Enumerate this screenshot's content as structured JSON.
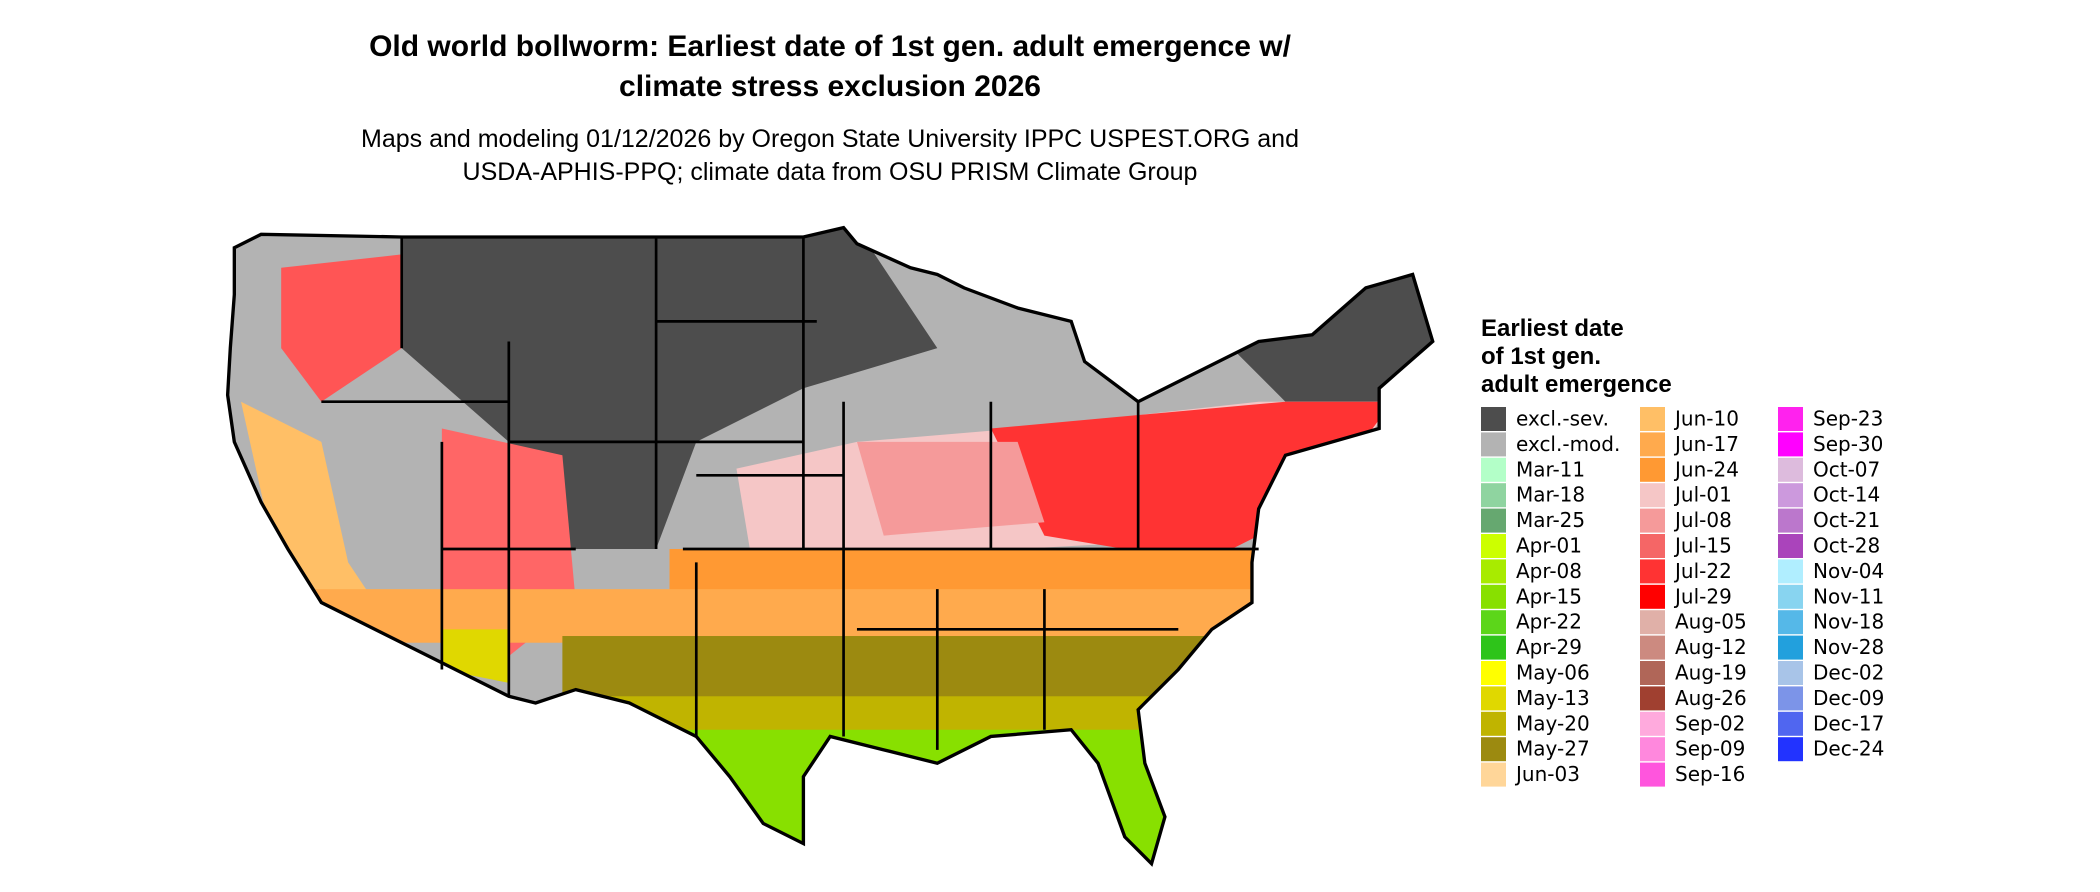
{
  "header": {
    "title_lines": [
      "Old world bollworm: Earliest date of 1st gen. adult emergence w/",
      "climate stress exclusion 2026"
    ],
    "subtitle_lines": [
      "Maps and modeling 01/12/2026 by Oregon State University IPPC USPEST.ORG and",
      "USDA-APHIS-PPQ; climate data from OSU PRISM Climate Group"
    ]
  },
  "legend": {
    "title_lines": [
      "Earliest date",
      "of 1st gen.",
      "adult emergence"
    ],
    "items": [
      {
        "label": "excl.-sev.",
        "color": "#4d4d4d"
      },
      {
        "label": "excl.-mod.",
        "color": "#b3b3b3"
      },
      {
        "label": "Mar-11",
        "color": "#b3ffc8"
      },
      {
        "label": "Mar-18",
        "color": "#8fd4a0"
      },
      {
        "label": "Mar-25",
        "color": "#66a870"
      },
      {
        "label": "Apr-01",
        "color": "#ccff00"
      },
      {
        "label": "Apr-08",
        "color": "#a8eb00"
      },
      {
        "label": "Apr-15",
        "color": "#88e000"
      },
      {
        "label": "Apr-22",
        "color": "#5cd61a"
      },
      {
        "label": "Apr-29",
        "color": "#2ec41a"
      },
      {
        "label": "May-06",
        "color": "#ffff00"
      },
      {
        "label": "May-13",
        "color": "#e0d800"
      },
      {
        "label": "May-20",
        "color": "#c0b400"
      },
      {
        "label": "May-27",
        "color": "#9c8a10"
      },
      {
        "label": "Jun-03",
        "color": "#ffd699"
      },
      {
        "label": "Jun-10",
        "color": "#ffbf66"
      },
      {
        "label": "Jun-17",
        "color": "#ffaa4d"
      },
      {
        "label": "Jun-24",
        "color": "#ff9933"
      },
      {
        "label": "Jul-01",
        "color": "#f5c6c6"
      },
      {
        "label": "Jul-08",
        "color": "#f59a9a"
      },
      {
        "label": "Jul-15",
        "color": "#f56666"
      },
      {
        "label": "Jul-22",
        "color": "#ff3333"
      },
      {
        "label": "Jul-29",
        "color": "#ff0000"
      },
      {
        "label": "Aug-05",
        "color": "#e0b0a8"
      },
      {
        "label": "Aug-12",
        "color": "#cc8a80"
      },
      {
        "label": "Aug-19",
        "color": "#b06658"
      },
      {
        "label": "Aug-26",
        "color": "#a04030"
      },
      {
        "label": "Sep-02",
        "color": "#ffaadd"
      },
      {
        "label": "Sep-09",
        "color": "#ff88dd"
      },
      {
        "label": "Sep-16",
        "color": "#ff55dd"
      },
      {
        "label": "Sep-23",
        "color": "#ff22ee"
      },
      {
        "label": "Sep-30",
        "color": "#ff00ff"
      },
      {
        "label": "Oct-07",
        "color": "#ddbbdd"
      },
      {
        "label": "Oct-14",
        "color": "#cc99dd"
      },
      {
        "label": "Oct-21",
        "color": "#bb77cc"
      },
      {
        "label": "Oct-28",
        "color": "#aa44bb"
      },
      {
        "label": "Nov-04",
        "color": "#b0eeff"
      },
      {
        "label": "Nov-11",
        "color": "#88d4f0"
      },
      {
        "label": "Nov-18",
        "color": "#55b8e8"
      },
      {
        "label": "Nov-28",
        "color": "#22a0dd"
      },
      {
        "label": "Dec-02",
        "color": "#a8c4e8"
      },
      {
        "label": "Dec-09",
        "color": "#7c94e8"
      },
      {
        "label": "Dec-17",
        "color": "#5066f0"
      },
      {
        "label": "Dec-24",
        "color": "#2233ff"
      }
    ]
  }
}
